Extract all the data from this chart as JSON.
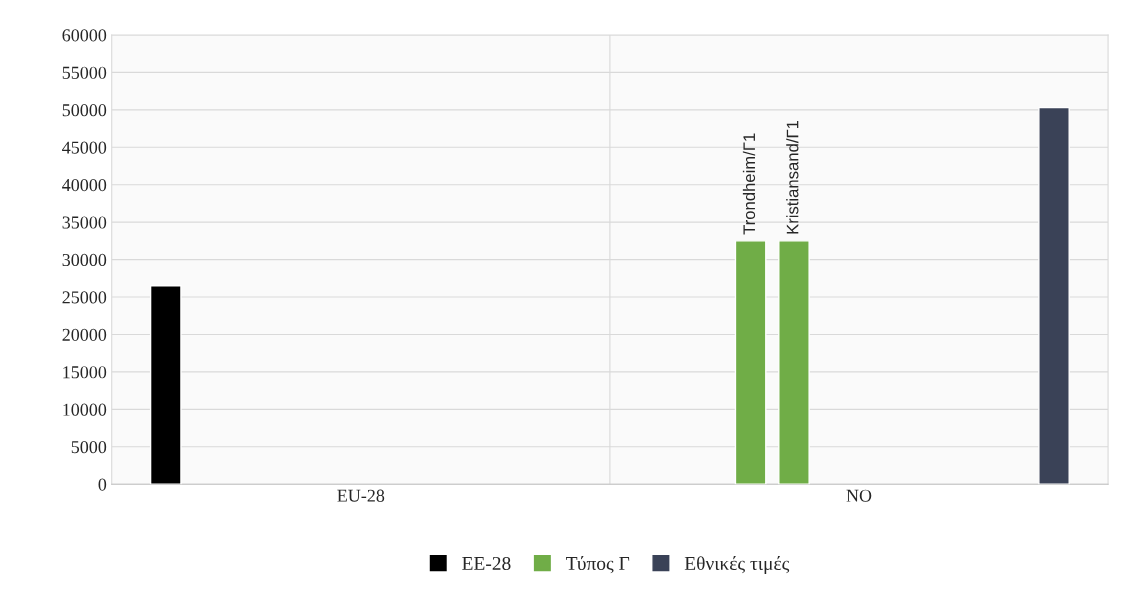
{
  "chart_data": {
    "type": "bar",
    "categories": [
      "EU-28",
      "NO"
    ],
    "series": [
      {
        "name": "ΕΕ-28",
        "color": "#000000",
        "values": [
          26500,
          null
        ]
      },
      {
        "values": [
          null,
          null
        ]
      },
      {
        "name": "Τύπος Γ",
        "color": "#70ad47",
        "values": [
          null,
          32500
        ],
        "value_labels": [
          null,
          "Trondheim/Γ1"
        ]
      },
      {
        "color": "#70ad47",
        "values": [
          null,
          32500
        ],
        "value_labels": [
          null,
          "Kristiansand/Γ1"
        ]
      },
      {
        "values": [
          null,
          null
        ]
      },
      {
        "values": [
          null,
          null
        ]
      },
      {
        "values": [
          null,
          null
        ]
      },
      {
        "values": [
          null,
          null
        ]
      },
      {
        "values": [
          null,
          null
        ]
      },
      {
        "name": "Εθνικές τιμές",
        "color": "#3a4257",
        "values": [
          null,
          50300
        ]
      }
    ],
    "ylim": [
      0,
      60000
    ],
    "yticks": [
      0,
      5000,
      10000,
      15000,
      20000,
      25000,
      30000,
      35000,
      40000,
      45000,
      50000,
      55000,
      60000
    ],
    "grid": true,
    "legend": "bottom"
  }
}
